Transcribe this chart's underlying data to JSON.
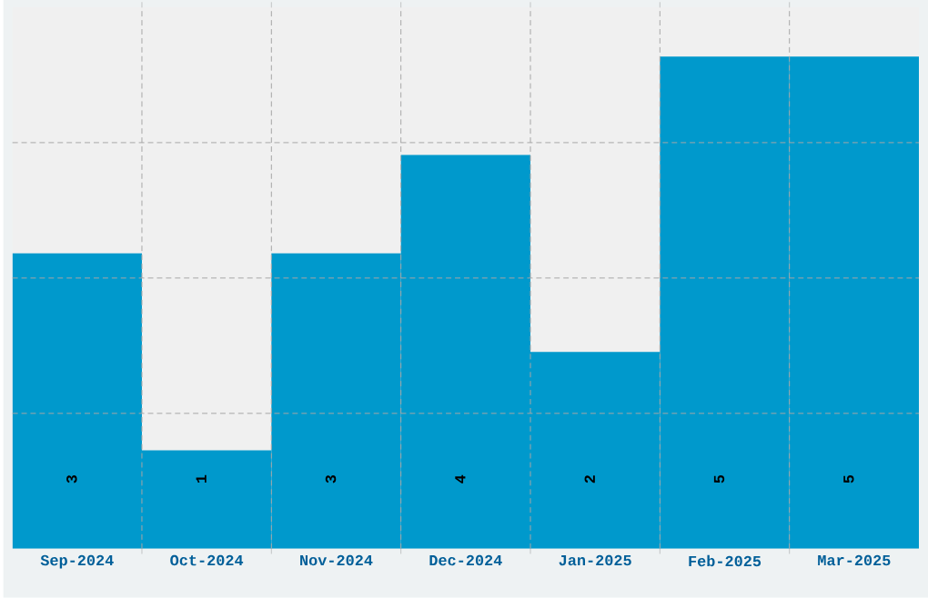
{
  "chart_data": {
    "type": "bar",
    "categories": [
      "Sep-2024",
      "Oct-2024",
      "Nov-2024",
      "Dec-2024",
      "Jan-2025",
      "Feb-2025",
      "Mar-2025"
    ],
    "values": [
      3,
      1,
      3,
      4,
      2,
      5,
      5
    ],
    "color": "#0099cc",
    "data_labels": true,
    "grid": true,
    "ylim": [
      0,
      5.5
    ],
    "yticks": [
      {
        "value": 1.375,
        "label": null
      },
      {
        "value": 2.75,
        "label": null
      },
      {
        "value": 4.125,
        "label": null
      }
    ],
    "tick_labels": "x"
  }
}
